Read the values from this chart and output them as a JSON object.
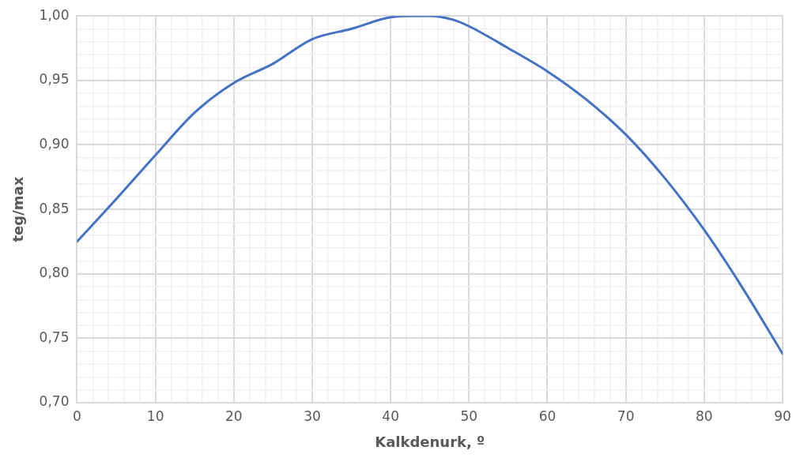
{
  "chart_data": {
    "type": "line",
    "xlabel": "Kalkdenurk, º",
    "ylabel": "teg/max",
    "x": [
      0,
      5,
      10,
      15,
      20,
      25,
      30,
      35,
      40,
      43,
      45,
      48,
      50,
      55,
      60,
      65,
      70,
      75,
      80,
      85,
      90
    ],
    "series": [
      {
        "color": "#4472c4",
        "values": [
          0.825,
          0.858,
          0.892,
          0.925,
          0.948,
          0.963,
          0.982,
          0.99,
          0.999,
          1.0,
          1.0,
          0.997,
          0.992,
          0.975,
          0.957,
          0.935,
          0.908,
          0.874,
          0.834,
          0.788,
          0.738
        ]
      }
    ],
    "xlim": [
      0,
      90
    ],
    "ylim": [
      0.7,
      1.0
    ],
    "xticks": [
      0,
      {
        "value": 2,
        "label": null
      },
      {
        "value": 4,
        "label": null
      },
      {
        "value": 6,
        "label": null
      },
      {
        "value": 8,
        "label": null
      },
      10,
      {
        "value": 12,
        "label": null
      },
      {
        "value": 14,
        "label": null
      },
      {
        "value": 16,
        "label": null
      },
      {
        "value": 18,
        "label": null
      },
      20,
      {
        "value": 22,
        "label": null
      },
      {
        "value": 24,
        "label": null
      },
      {
        "value": 26,
        "label": null
      },
      {
        "value": 28,
        "label": null
      },
      30,
      {
        "value": 32,
        "label": null
      },
      {
        "value": 34,
        "label": null
      },
      {
        "value": 36,
        "label": null
      },
      {
        "value": 38,
        "label": null
      },
      40,
      {
        "value": 42,
        "label": null
      },
      {
        "value": 44,
        "label": null
      },
      {
        "value": 46,
        "label": null
      },
      {
        "value": 48,
        "label": null
      },
      50,
      {
        "value": 52,
        "label": null
      },
      {
        "value": 54,
        "label": null
      },
      {
        "value": 56,
        "label": null
      },
      {
        "value": 58,
        "label": null
      },
      60,
      {
        "value": 62,
        "label": null
      },
      {
        "value": 64,
        "label": null
      },
      {
        "value": 66,
        "label": null
      },
      {
        "value": 68,
        "label": null
      },
      70,
      {
        "value": 72,
        "label": null
      },
      {
        "value": 74,
        "label": null
      },
      {
        "value": 76,
        "label": null
      },
      {
        "value": 78,
        "label": null
      },
      80,
      {
        "value": 82,
        "label": null
      },
      {
        "value": 84,
        "label": null
      },
      {
        "value": 86,
        "label": null
      },
      {
        "value": 88,
        "label": null
      },
      90
    ],
    "yticks": [
      {
        "value": 0.7,
        "label": "0,70"
      },
      {
        "value": 0.71,
        "label": null
      },
      {
        "value": 0.72,
        "label": null
      },
      {
        "value": 0.73,
        "label": null
      },
      {
        "value": 0.74,
        "label": null
      },
      {
        "value": 0.75,
        "label": "0,75"
      },
      {
        "value": 0.76,
        "label": null
      },
      {
        "value": 0.77,
        "label": null
      },
      {
        "value": 0.78,
        "label": null
      },
      {
        "value": 0.79,
        "label": null
      },
      {
        "value": 0.8,
        "label": "0,80"
      },
      {
        "value": 0.81,
        "label": null
      },
      {
        "value": 0.82,
        "label": null
      },
      {
        "value": 0.83,
        "label": null
      },
      {
        "value": 0.84,
        "label": null
      },
      {
        "value": 0.85,
        "label": "0,85"
      },
      {
        "value": 0.86,
        "label": null
      },
      {
        "value": 0.87,
        "label": null
      },
      {
        "value": 0.88,
        "label": null
      },
      {
        "value": 0.89,
        "label": null
      },
      {
        "value": 0.9,
        "label": "0,90"
      },
      {
        "value": 0.91,
        "label": null
      },
      {
        "value": 0.92,
        "label": null
      },
      {
        "value": 0.93,
        "label": null
      },
      {
        "value": 0.94,
        "label": null
      },
      {
        "value": 0.95,
        "label": "0,95"
      },
      {
        "value": 0.96,
        "label": null
      },
      {
        "value": 0.97,
        "label": null
      },
      {
        "value": 0.98,
        "label": null
      },
      {
        "value": 0.99,
        "label": null
      },
      {
        "value": 1.0,
        "label": "1,00"
      }
    ],
    "grid": true,
    "legend": false,
    "marker": "none",
    "line_style": "solid"
  }
}
